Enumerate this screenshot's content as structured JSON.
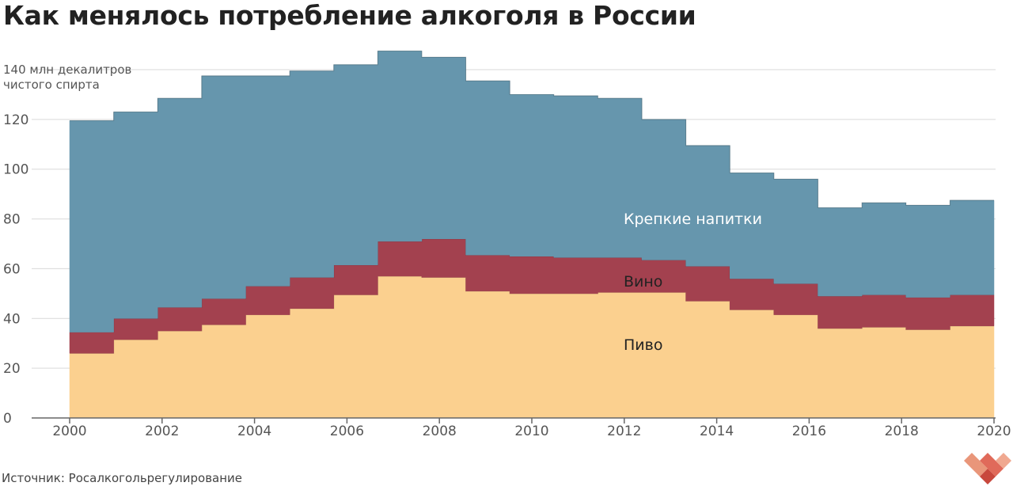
{
  "title": "Как менялось потребление алкоголя в России",
  "source": "Источник: Росалкогольрегулирование",
  "colors": {
    "beer": "#fbd08f",
    "wine": "#a3414f",
    "spirits": "#6696ad",
    "grid": "#d9d9d9",
    "axis": "#666666"
  },
  "chart_data": {
    "type": "area",
    "stacked": true,
    "step": true,
    "x": [
      2000,
      2001,
      2002,
      2003,
      2004,
      2005,
      2006,
      2007,
      2008,
      2009,
      2010,
      2011,
      2012,
      2013,
      2014,
      2015,
      2016,
      2017,
      2018,
      2019,
      2020
    ],
    "series": [
      {
        "name": "Пиво",
        "key": "beer",
        "values": [
          26,
          31.5,
          35,
          37.5,
          41.5,
          44,
          49.5,
          57,
          56.5,
          51,
          50,
          50,
          50.5,
          50.5,
          47,
          43.5,
          41.5,
          36,
          36.5,
          35.5,
          37
        ]
      },
      {
        "name": "Вино",
        "key": "wine",
        "values": [
          8.5,
          8.5,
          9.5,
          10.5,
          11.5,
          12.5,
          12,
          14,
          15.5,
          14.5,
          15,
          14.5,
          14,
          13,
          14,
          12.5,
          12.5,
          13,
          13,
          13,
          12.5
        ]
      },
      {
        "name": "Крепкие напитки",
        "key": "spirits",
        "values": [
          85,
          83,
          84,
          89.5,
          84.5,
          83,
          80.5,
          76.5,
          73,
          70,
          65,
          65,
          64,
          56.5,
          48.5,
          42.5,
          42,
          35.5,
          37,
          37,
          38
        ]
      }
    ],
    "yticks": [
      0,
      20,
      40,
      60,
      80,
      100,
      120
    ],
    "top_tick_label": "140 млн декалитров",
    "top_tick_label_line2": "чистого спирта",
    "xticks": [
      2000,
      2002,
      2004,
      2006,
      2008,
      2010,
      2012,
      2014,
      2016,
      2018,
      2020
    ],
    "ylim": [
      0,
      140
    ],
    "xlim": [
      2000,
      2020
    ],
    "grid": true,
    "inline_labels": [
      "Крепкие напитки",
      "Вино",
      "Пиво"
    ]
  }
}
